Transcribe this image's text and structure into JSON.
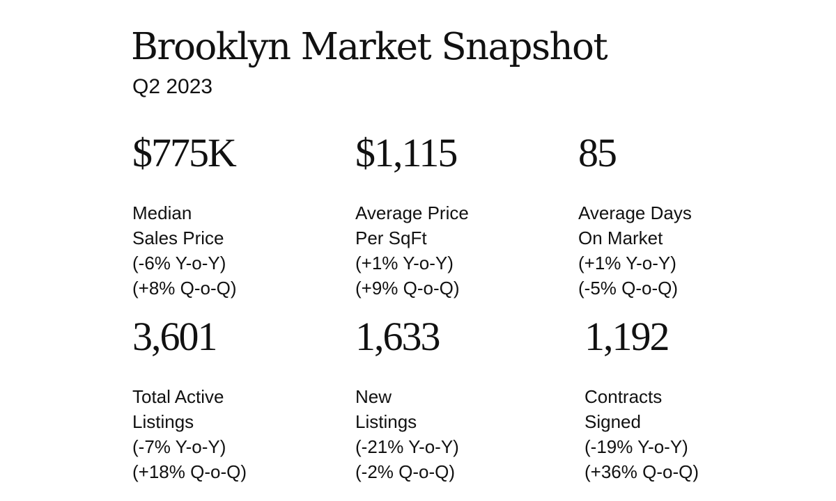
{
  "header": {
    "title": "Brooklyn Market Snapshot",
    "subtitle": "Q2 2023"
  },
  "metrics": [
    {
      "value": "$775K",
      "label_line1": "Median",
      "label_line2": "Sales Price",
      "yoy": "(-6% Y-o-Y)",
      "qoq": "(+8% Q-o-Q)"
    },
    {
      "value": "$1,115",
      "label_line1": "Average Price",
      "label_line2": "Per SqFt",
      "yoy": "(+1% Y-o-Y)",
      "qoq": "(+9% Q-o-Q)"
    },
    {
      "value": "85",
      "label_line1": "Average Days",
      "label_line2": "On Market",
      "yoy": "(+1% Y-o-Y)",
      "qoq": "(-5% Q-o-Q)"
    },
    {
      "value": "3,601",
      "label_line1": "Total Active",
      "label_line2": "Listings",
      "yoy": "(-7% Y-o-Y)",
      "qoq": "(+18% Q-o-Q)"
    },
    {
      "value": "1,633",
      "label_line1": "New",
      "label_line2": "Listings",
      "yoy": "(-21% Y-o-Y)",
      "qoq": "(-2% Q-o-Q)"
    },
    {
      "value": "1,192",
      "label_line1": "Contracts",
      "label_line2": "Signed",
      "yoy": "(-19% Y-o-Y)",
      "qoq": "(+36% Q-o-Q)"
    }
  ]
}
